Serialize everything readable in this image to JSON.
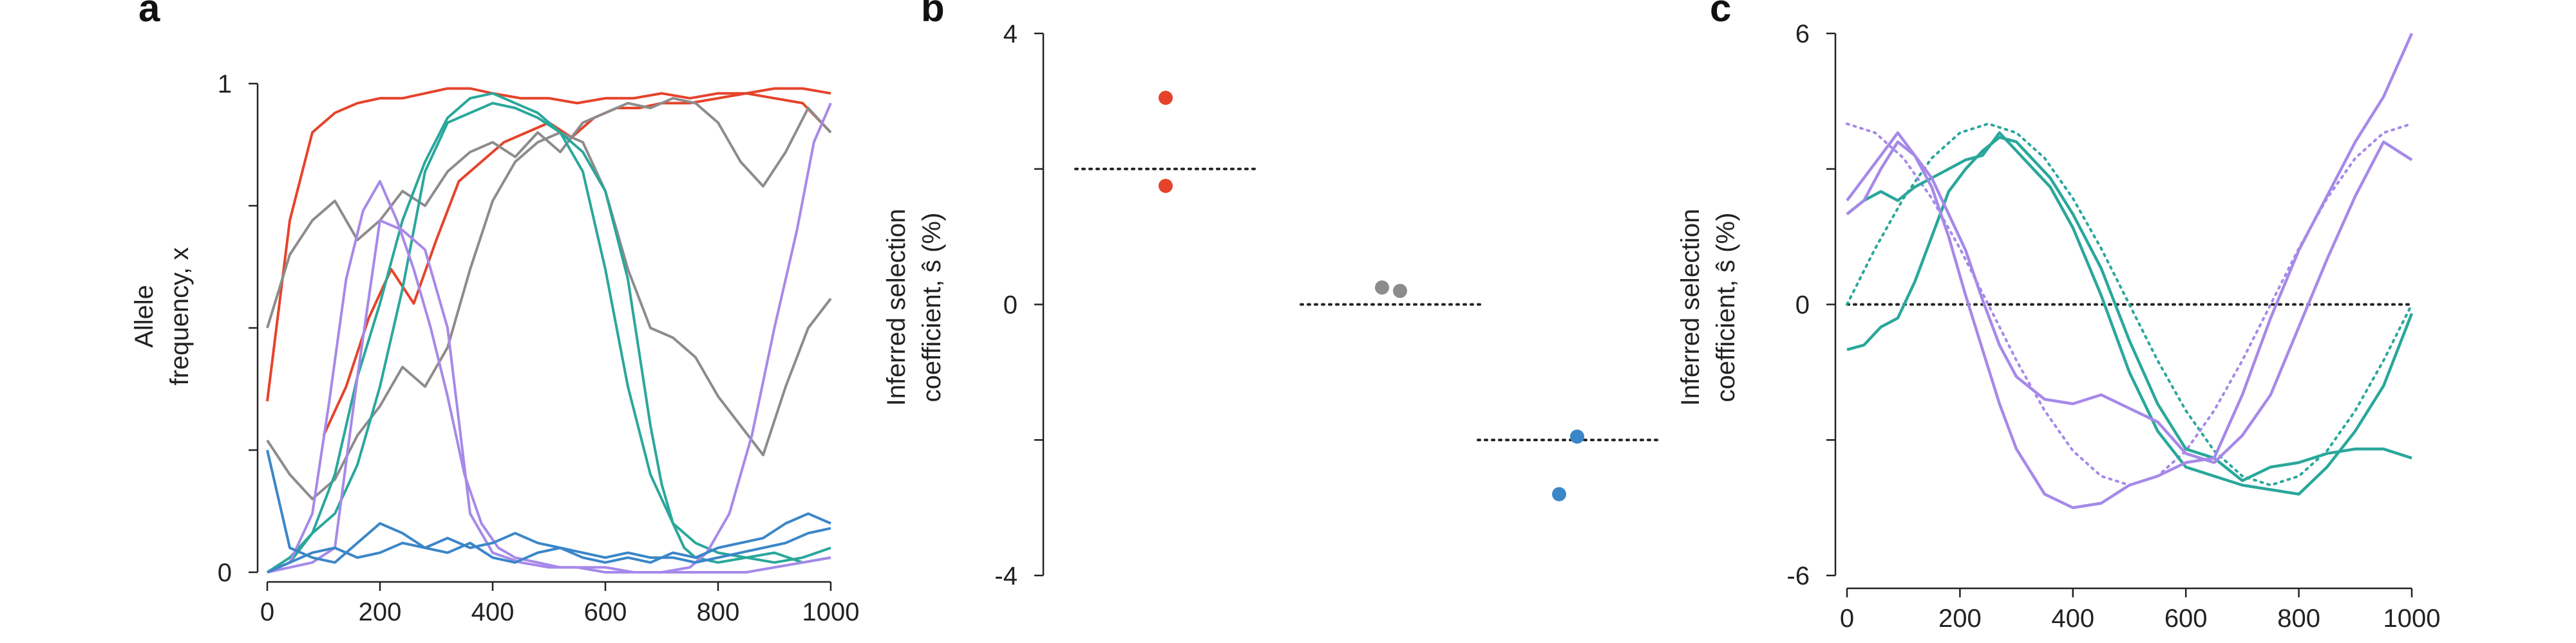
{
  "colors": {
    "red": "#e5432b",
    "gray": "#8c8c8c",
    "teal": "#2aa79b",
    "purple": "#a689e9",
    "blue": "#3a86c8",
    "axis": "#222222"
  },
  "chart_data": [
    {
      "panel": "a",
      "type": "line",
      "title": "",
      "ylabel_lines": [
        "Allele",
        "frequency, x"
      ],
      "xlim": [
        0,
        1000
      ],
      "ylim": [
        0,
        1
      ],
      "xticks": [
        "0",
        "200",
        "400",
        "600",
        "800",
        "1000"
      ],
      "yticks": [
        "0",
        "1"
      ],
      "grid": false,
      "series": [
        {
          "color": "red",
          "x": [
            0,
            40,
            80,
            120,
            160,
            200,
            240,
            280,
            320,
            360,
            400,
            450,
            500,
            550,
            600,
            650,
            700,
            750,
            800,
            850,
            900,
            950,
            1000
          ],
          "y": [
            0.35,
            0.72,
            0.9,
            0.94,
            0.96,
            0.97,
            0.97,
            0.98,
            0.99,
            0.99,
            0.98,
            0.97,
            0.97,
            0.96,
            0.97,
            0.97,
            0.98,
            0.97,
            0.98,
            0.98,
            0.99,
            0.99,
            0.98
          ]
        },
        {
          "color": "red",
          "x": [
            100,
            140,
            180,
            220,
            260,
            300,
            340,
            380,
            420,
            460,
            500,
            540,
            580,
            620,
            660,
            700,
            750,
            800,
            850,
            900,
            950,
            1000
          ],
          "y": [
            0.28,
            0.38,
            0.52,
            0.62,
            0.55,
            0.68,
            0.8,
            0.84,
            0.88,
            0.9,
            0.92,
            0.89,
            0.93,
            0.95,
            0.95,
            0.96,
            0.96,
            0.97,
            0.98,
            0.97,
            0.96,
            0.9
          ]
        },
        {
          "color": "gray",
          "x": [
            0,
            40,
            80,
            120,
            160,
            200,
            240,
            280,
            320,
            360,
            400,
            440,
            480,
            520,
            560,
            600,
            640,
            680,
            720,
            760,
            800,
            840,
            880,
            920,
            960,
            1000
          ],
          "y": [
            0.5,
            0.65,
            0.72,
            0.76,
            0.68,
            0.72,
            0.78,
            0.75,
            0.82,
            0.86,
            0.88,
            0.85,
            0.9,
            0.86,
            0.92,
            0.94,
            0.96,
            0.95,
            0.97,
            0.96,
            0.92,
            0.84,
            0.79,
            0.86,
            0.95,
            0.9
          ]
        },
        {
          "color": "gray",
          "x": [
            0,
            40,
            80,
            120,
            160,
            200,
            240,
            280,
            320,
            360,
            400,
            440,
            480,
            520,
            560,
            600,
            640,
            680,
            720,
            760,
            800,
            840,
            880,
            920,
            960,
            1000
          ],
          "y": [
            0.27,
            0.2,
            0.15,
            0.19,
            0.28,
            0.34,
            0.42,
            0.38,
            0.46,
            0.62,
            0.76,
            0.84,
            0.88,
            0.9,
            0.88,
            0.78,
            0.62,
            0.5,
            0.48,
            0.44,
            0.36,
            0.3,
            0.24,
            0.38,
            0.5,
            0.56
          ]
        },
        {
          "color": "teal",
          "x": [
            0,
            40,
            80,
            120,
            160,
            200,
            240,
            280,
            320,
            360,
            400,
            440,
            480,
            520,
            560,
            600,
            640,
            660,
            680,
            700,
            720,
            740,
            760,
            800,
            850,
            900,
            950,
            1000
          ],
          "y": [
            0.0,
            0.02,
            0.08,
            0.2,
            0.4,
            0.55,
            0.72,
            0.84,
            0.93,
            0.97,
            0.98,
            0.96,
            0.94,
            0.9,
            0.86,
            0.78,
            0.6,
            0.45,
            0.3,
            0.18,
            0.1,
            0.05,
            0.03,
            0.02,
            0.03,
            0.04,
            0.02,
            0.03
          ]
        },
        {
          "color": "teal",
          "x": [
            0,
            40,
            80,
            120,
            160,
            200,
            240,
            280,
            320,
            360,
            400,
            440,
            480,
            520,
            560,
            600,
            640,
            680,
            720,
            760,
            800,
            850,
            900,
            950,
            1000
          ],
          "y": [
            0.0,
            0.03,
            0.08,
            0.12,
            0.22,
            0.38,
            0.58,
            0.82,
            0.92,
            0.94,
            0.96,
            0.95,
            0.93,
            0.9,
            0.82,
            0.62,
            0.38,
            0.2,
            0.1,
            0.06,
            0.04,
            0.03,
            0.02,
            0.03,
            0.05
          ]
        },
        {
          "color": "purple",
          "x": [
            0,
            40,
            80,
            110,
            140,
            170,
            200,
            230,
            260,
            290,
            320,
            350,
            380,
            410,
            440,
            480,
            520,
            560,
            600,
            650,
            700,
            750,
            800,
            850,
            900,
            950,
            1000
          ],
          "y": [
            0.0,
            0.02,
            0.12,
            0.35,
            0.6,
            0.74,
            0.8,
            0.72,
            0.62,
            0.5,
            0.36,
            0.2,
            0.1,
            0.05,
            0.03,
            0.02,
            0.01,
            0.01,
            0.01,
            0.0,
            0.0,
            0.0,
            0.0,
            0.0,
            0.01,
            0.02,
            0.03
          ]
        },
        {
          "color": "purple",
          "x": [
            0,
            40,
            80,
            120,
            160,
            200,
            240,
            280,
            320,
            360,
            400,
            450,
            500,
            550,
            600,
            650,
            700,
            750,
            780,
            820,
            860,
            900,
            940,
            970,
            1000
          ],
          "y": [
            0.0,
            0.01,
            0.02,
            0.05,
            0.4,
            0.72,
            0.7,
            0.66,
            0.5,
            0.12,
            0.04,
            0.02,
            0.01,
            0.01,
            0.0,
            0.0,
            0.0,
            0.01,
            0.04,
            0.12,
            0.28,
            0.5,
            0.7,
            0.88,
            0.96
          ]
        },
        {
          "color": "blue",
          "x": [
            0,
            40,
            80,
            120,
            160,
            200,
            240,
            280,
            320,
            360,
            400,
            440,
            480,
            520,
            560,
            600,
            640,
            680,
            720,
            760,
            800,
            840,
            880,
            920,
            960,
            1000
          ],
          "y": [
            0.25,
            0.05,
            0.03,
            0.02,
            0.06,
            0.1,
            0.08,
            0.05,
            0.04,
            0.06,
            0.03,
            0.02,
            0.04,
            0.05,
            0.03,
            0.02,
            0.03,
            0.02,
            0.04,
            0.03,
            0.05,
            0.06,
            0.07,
            0.1,
            0.12,
            0.1
          ]
        },
        {
          "color": "blue",
          "x": [
            0,
            40,
            80,
            120,
            160,
            200,
            240,
            280,
            320,
            360,
            400,
            440,
            480,
            520,
            560,
            600,
            640,
            680,
            720,
            760,
            800,
            840,
            880,
            920,
            960,
            1000
          ],
          "y": [
            0.0,
            0.02,
            0.04,
            0.05,
            0.03,
            0.04,
            0.06,
            0.05,
            0.07,
            0.05,
            0.06,
            0.08,
            0.06,
            0.05,
            0.04,
            0.03,
            0.04,
            0.03,
            0.03,
            0.02,
            0.03,
            0.04,
            0.05,
            0.06,
            0.08,
            0.09
          ]
        }
      ]
    },
    {
      "panel": "b",
      "type": "scatter",
      "title": "",
      "ylabel_lines": [
        "Inferred selection",
        "coefficient, ŝ (%)"
      ],
      "ylim": [
        -4,
        4
      ],
      "yticks": [
        "4",
        "0",
        "-4"
      ],
      "grid": false,
      "groups": [
        {
          "color": "red",
          "true_value": 2,
          "points": [
            {
              "x_offset": 0.0,
              "y": 3.05
            },
            {
              "x_offset": 0.0,
              "y": 1.75
            }
          ]
        },
        {
          "color": "gray",
          "true_value": 0,
          "points": [
            {
              "x_offset": -0.1,
              "y": 0.25
            },
            {
              "x_offset": 0.1,
              "y": 0.2
            }
          ]
        },
        {
          "color": "blue",
          "true_value": -2,
          "points": [
            {
              "x_offset": -0.1,
              "y": -2.8
            },
            {
              "x_offset": 0.1,
              "y": -1.95
            }
          ]
        }
      ]
    },
    {
      "panel": "c",
      "type": "line",
      "title": "",
      "ylabel_lines": [
        "Inferred selection",
        "coefficient, ŝ (%)"
      ],
      "xlim": [
        0,
        1000
      ],
      "ylim": [
        -6,
        6
      ],
      "xticks": [
        "0",
        "200",
        "400",
        "600",
        "800",
        "1000"
      ],
      "yticks": [
        "6",
        "0",
        "-6"
      ],
      "grid": false,
      "reference_line": 0,
      "true_curves": [
        {
          "color": "teal",
          "x": [
            0,
            50,
            100,
            150,
            200,
            250,
            300,
            350,
            400,
            450,
            500,
            550,
            600,
            650,
            700,
            750,
            800,
            850,
            900,
            950,
            1000
          ],
          "y": [
            0.0,
            1.24,
            2.35,
            3.24,
            3.8,
            4.0,
            3.8,
            3.24,
            2.35,
            1.24,
            0.0,
            -1.24,
            -2.35,
            -3.24,
            -3.8,
            -4.0,
            -3.8,
            -3.24,
            -2.35,
            -1.24,
            0.0
          ]
        },
        {
          "color": "purple",
          "x": [
            0,
            50,
            100,
            150,
            200,
            250,
            300,
            350,
            400,
            450,
            500,
            550,
            600,
            650,
            700,
            750,
            800,
            850,
            900,
            950,
            1000
          ],
          "y": [
            4.0,
            3.8,
            3.24,
            2.35,
            1.24,
            0.0,
            -1.24,
            -2.35,
            -3.24,
            -3.8,
            -4.0,
            -3.8,
            -3.24,
            -2.35,
            -1.24,
            0.0,
            1.24,
            2.35,
            3.24,
            3.8,
            4.0
          ]
        }
      ],
      "series": [
        {
          "color": "teal",
          "x": [
            0,
            30,
            60,
            90,
            120,
            150,
            180,
            210,
            240,
            270,
            300,
            330,
            360,
            400,
            450,
            500,
            550,
            600,
            650,
            700,
            750,
            800,
            850,
            900,
            950,
            1000
          ],
          "y": [
            -1.0,
            -0.9,
            -0.5,
            -0.3,
            0.5,
            1.5,
            2.5,
            3.0,
            3.4,
            3.7,
            3.6,
            3.2,
            2.8,
            2.0,
            0.8,
            -0.8,
            -2.2,
            -3.2,
            -3.4,
            -3.9,
            -3.6,
            -3.5,
            -3.3,
            -3.2,
            -3.2,
            -3.4
          ]
        },
        {
          "color": "teal",
          "x": [
            0,
            30,
            60,
            90,
            120,
            150,
            180,
            210,
            240,
            270,
            300,
            330,
            360,
            400,
            450,
            500,
            550,
            600,
            650,
            700,
            750,
            800,
            850,
            900,
            950,
            1000
          ],
          "y": [
            2.0,
            2.3,
            2.5,
            2.3,
            2.6,
            2.8,
            3.0,
            3.2,
            3.3,
            3.8,
            3.4,
            3.0,
            2.6,
            1.7,
            0.2,
            -1.5,
            -2.8,
            -3.6,
            -3.8,
            -4.0,
            -4.1,
            -4.2,
            -3.6,
            -2.8,
            -1.8,
            -0.2
          ]
        },
        {
          "color": "purple",
          "x": [
            0,
            30,
            60,
            90,
            120,
            150,
            180,
            210,
            240,
            270,
            300,
            350,
            400,
            450,
            500,
            550,
            600,
            650,
            700,
            750,
            800,
            850,
            900,
            950,
            1000
          ],
          "y": [
            2.0,
            2.3,
            3.0,
            3.6,
            3.3,
            2.8,
            2.0,
            1.2,
            0.1,
            -0.9,
            -1.6,
            -2.1,
            -2.2,
            -2.0,
            -2.3,
            -2.6,
            -3.3,
            -3.5,
            -2.9,
            -2.0,
            -0.5,
            1.0,
            2.4,
            3.6,
            3.2
          ]
        },
        {
          "color": "purple",
          "x": [
            0,
            30,
            60,
            90,
            120,
            150,
            180,
            210,
            240,
            270,
            300,
            350,
            400,
            450,
            500,
            550,
            600,
            650,
            700,
            750,
            800,
            850,
            900,
            950,
            1000
          ],
          "y": [
            2.3,
            2.8,
            3.3,
            3.8,
            3.3,
            2.6,
            1.5,
            0.2,
            -1.0,
            -2.2,
            -3.2,
            -4.2,
            -4.5,
            -4.4,
            -4.0,
            -3.8,
            -3.5,
            -3.4,
            -2.0,
            -0.3,
            1.2,
            2.4,
            3.6,
            4.6,
            6.0
          ]
        }
      ]
    }
  ]
}
